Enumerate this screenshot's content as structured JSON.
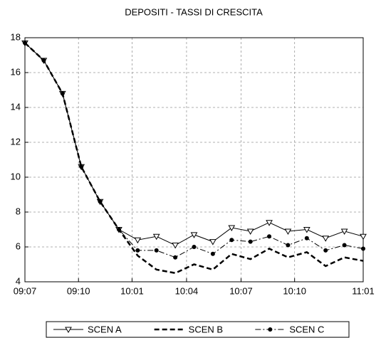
{
  "chart_data": {
    "type": "line",
    "title": "DEPOSITI  - TASSI DI CRESCITA",
    "x": [
      0,
      1,
      2,
      3,
      4,
      5,
      6,
      7,
      8,
      9,
      10,
      11,
      12,
      13,
      14,
      15,
      16,
      17,
      18
    ],
    "xlim": [
      0,
      18
    ],
    "xticks": [
      {
        "value": 0,
        "label": "09:07"
      },
      {
        "value": 2.85,
        "label": "09:10"
      },
      {
        "value": 5.7,
        "label": "10:01"
      },
      {
        "value": 8.6,
        "label": "10:04"
      },
      {
        "value": 11.5,
        "label": "10:07"
      },
      {
        "value": 14.35,
        "label": "10:10"
      },
      {
        "value": 18,
        "label": "11:01"
      }
    ],
    "ylim": [
      4,
      18
    ],
    "yticks": [
      4,
      6,
      8,
      10,
      12,
      14,
      16,
      18
    ],
    "grid": true,
    "legend": "bottom",
    "series": [
      {
        "name": "SCEN A",
        "color": "#000000",
        "marker": "triangle-down",
        "dash": "none",
        "values": [
          17.7,
          16.7,
          14.8,
          10.6,
          8.6,
          7.0,
          6.4,
          6.6,
          6.1,
          6.7,
          6.3,
          7.1,
          6.9,
          7.4,
          6.9,
          7.0,
          6.5,
          6.9,
          6.6
        ]
      },
      {
        "name": "SCEN B",
        "color": "#000000",
        "marker": "none",
        "dash": "dashed",
        "values": [
          17.7,
          16.7,
          14.8,
          10.6,
          8.6,
          7.0,
          5.5,
          4.7,
          4.5,
          5.0,
          4.7,
          5.6,
          5.3,
          5.9,
          5.4,
          5.7,
          4.9,
          5.4,
          5.2
        ]
      },
      {
        "name": "SCEN C",
        "color": "#000000",
        "marker": "circle",
        "dash": "dashdot",
        "values": [
          17.7,
          16.7,
          14.8,
          10.6,
          8.6,
          7.0,
          5.8,
          5.8,
          5.4,
          6.0,
          5.6,
          6.4,
          6.3,
          6.6,
          6.1,
          6.5,
          5.8,
          6.1,
          5.9
        ]
      }
    ]
  }
}
